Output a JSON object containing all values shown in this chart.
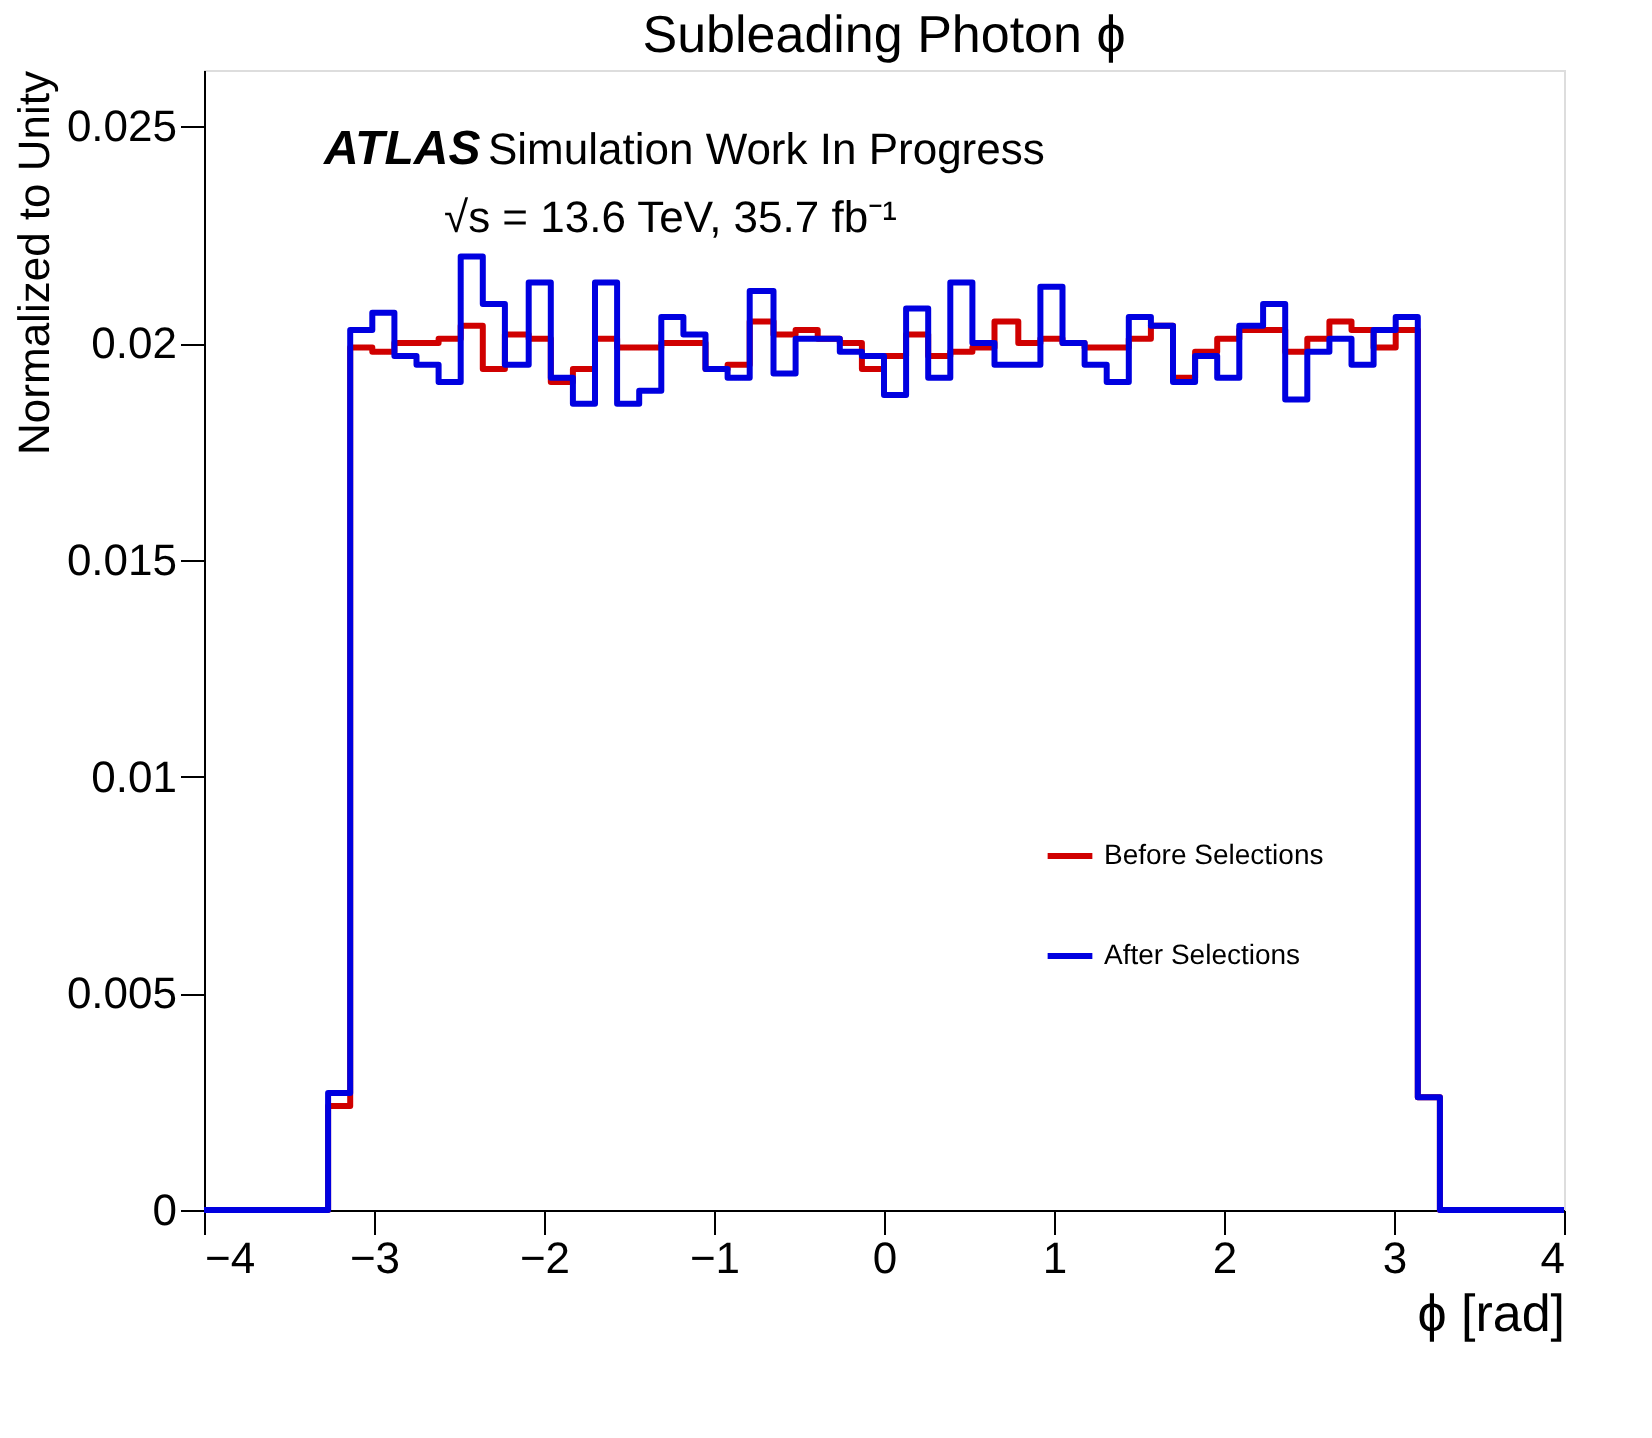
{
  "chart_data": {
    "type": "histogram",
    "title": "Subleading Photon ϕ",
    "xlabel": "ϕ [rad]",
    "ylabel": "Normalized to Unity",
    "annotations": [
      "ATLAS",
      "Simulation Work In Progress",
      "√s = 13.6 TeV, 35.7 fb⁻¹"
    ],
    "bins": [
      -4,
      -3.27,
      -3.14,
      -3.01,
      -2.88,
      -2.75,
      -2.62,
      -2.49,
      -2.36,
      -2.23,
      -2.09,
      -1.96,
      -1.83,
      -1.7,
      -1.57,
      -1.44,
      -1.31,
      -1.18,
      -1.05,
      -0.92,
      -0.79,
      -0.65,
      -0.52,
      -0.39,
      -0.26,
      -0.13,
      0,
      0.13,
      0.26,
      0.39,
      0.52,
      0.65,
      0.79,
      0.92,
      1.05,
      1.18,
      1.31,
      1.44,
      1.57,
      1.7,
      1.83,
      1.96,
      2.09,
      2.23,
      2.36,
      2.49,
      2.62,
      2.75,
      2.88,
      3.01,
      3.14,
      3.27,
      4
    ],
    "series": [
      {
        "name": "Before Selections",
        "color": "#d00000",
        "values": [
          0,
          0.0024,
          0.0199,
          0.0198,
          0.02,
          0.02,
          0.0201,
          0.0204,
          0.0194,
          0.0202,
          0.0201,
          0.0191,
          0.0194,
          0.0201,
          0.0199,
          0.0199,
          0.02,
          0.02,
          0.0194,
          0.0195,
          0.0205,
          0.0202,
          0.0203,
          0.0201,
          0.02,
          0.0194,
          0.0197,
          0.0202,
          0.0197,
          0.0198,
          0.0199,
          0.0205,
          0.02,
          0.0201,
          0.02,
          0.0199,
          0.0199,
          0.0201,
          0.0204,
          0.0192,
          0.0198,
          0.0201,
          0.0203,
          0.0203,
          0.0198,
          0.0201,
          0.0205,
          0.0203,
          0.0199,
          0.0203,
          0.0026,
          0
        ]
      },
      {
        "name": "After Selections",
        "color": "#0000e0",
        "values": [
          0,
          0.0027,
          0.0203,
          0.0207,
          0.0197,
          0.0195,
          0.0191,
          0.022,
          0.0209,
          0.0195,
          0.0214,
          0.0192,
          0.0186,
          0.0214,
          0.0186,
          0.0189,
          0.0206,
          0.0202,
          0.0194,
          0.0192,
          0.0212,
          0.0193,
          0.0201,
          0.0201,
          0.0198,
          0.0197,
          0.0188,
          0.0208,
          0.0192,
          0.0214,
          0.02,
          0.0195,
          0.0195,
          0.0213,
          0.02,
          0.0195,
          0.0191,
          0.0206,
          0.0204,
          0.0191,
          0.0197,
          0.0192,
          0.0204,
          0.0209,
          0.0187,
          0.0198,
          0.0201,
          0.0195,
          0.0203,
          0.0206,
          0.0026,
          0
        ]
      }
    ],
    "xlim": [
      -4,
      4
    ],
    "xticks": [
      -4,
      -3,
      -2,
      -1,
      0,
      1,
      2,
      3,
      4
    ],
    "ylim": [
      0,
      0.0263
    ],
    "yticks": [
      0,
      0.005,
      0.01,
      0.015,
      0.02,
      0.025
    ],
    "grid": false,
    "legend": "bottom right",
    "line_style": "solid",
    "marker": "none"
  }
}
